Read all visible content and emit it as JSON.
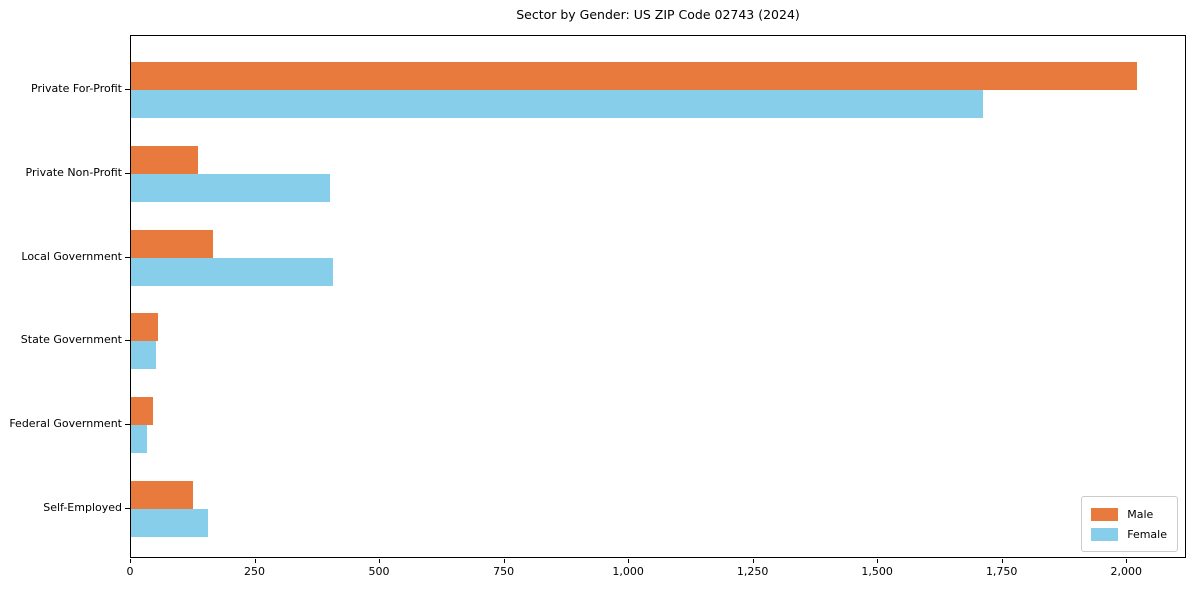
{
  "chart_data": {
    "type": "bar",
    "orientation": "horizontal",
    "title": "Sector by Gender: US ZIP Code 02743 (2024)",
    "categories": [
      "Private For-Profit",
      "Private Non-Profit",
      "Local Government",
      "State Government",
      "Federal Government",
      "Self-Employed"
    ],
    "series": [
      {
        "name": "Male",
        "color": "#e87a3d",
        "values": [
          2020,
          135,
          165,
          55,
          44,
          124
        ]
      },
      {
        "name": "Female",
        "color": "#87ceeb",
        "values": [
          1710,
          400,
          405,
          50,
          32,
          155
        ]
      }
    ],
    "xlabel": "",
    "ylabel": "",
    "xlim": [
      0,
      2120
    ],
    "x_ticks": [
      {
        "value": 0,
        "label": "0"
      },
      {
        "value": 250,
        "label": "250"
      },
      {
        "value": 500,
        "label": "500"
      },
      {
        "value": 750,
        "label": "750"
      },
      {
        "value": 1000,
        "label": "1,000"
      },
      {
        "value": 1250,
        "label": "1,250"
      },
      {
        "value": 1500,
        "label": "1,500"
      },
      {
        "value": 1750,
        "label": "1,750"
      },
      {
        "value": 2000,
        "label": "2,000"
      }
    ],
    "grid": false,
    "legend_position": "lower right",
    "axis_color": "#000000",
    "background_color": "#ffffff"
  }
}
